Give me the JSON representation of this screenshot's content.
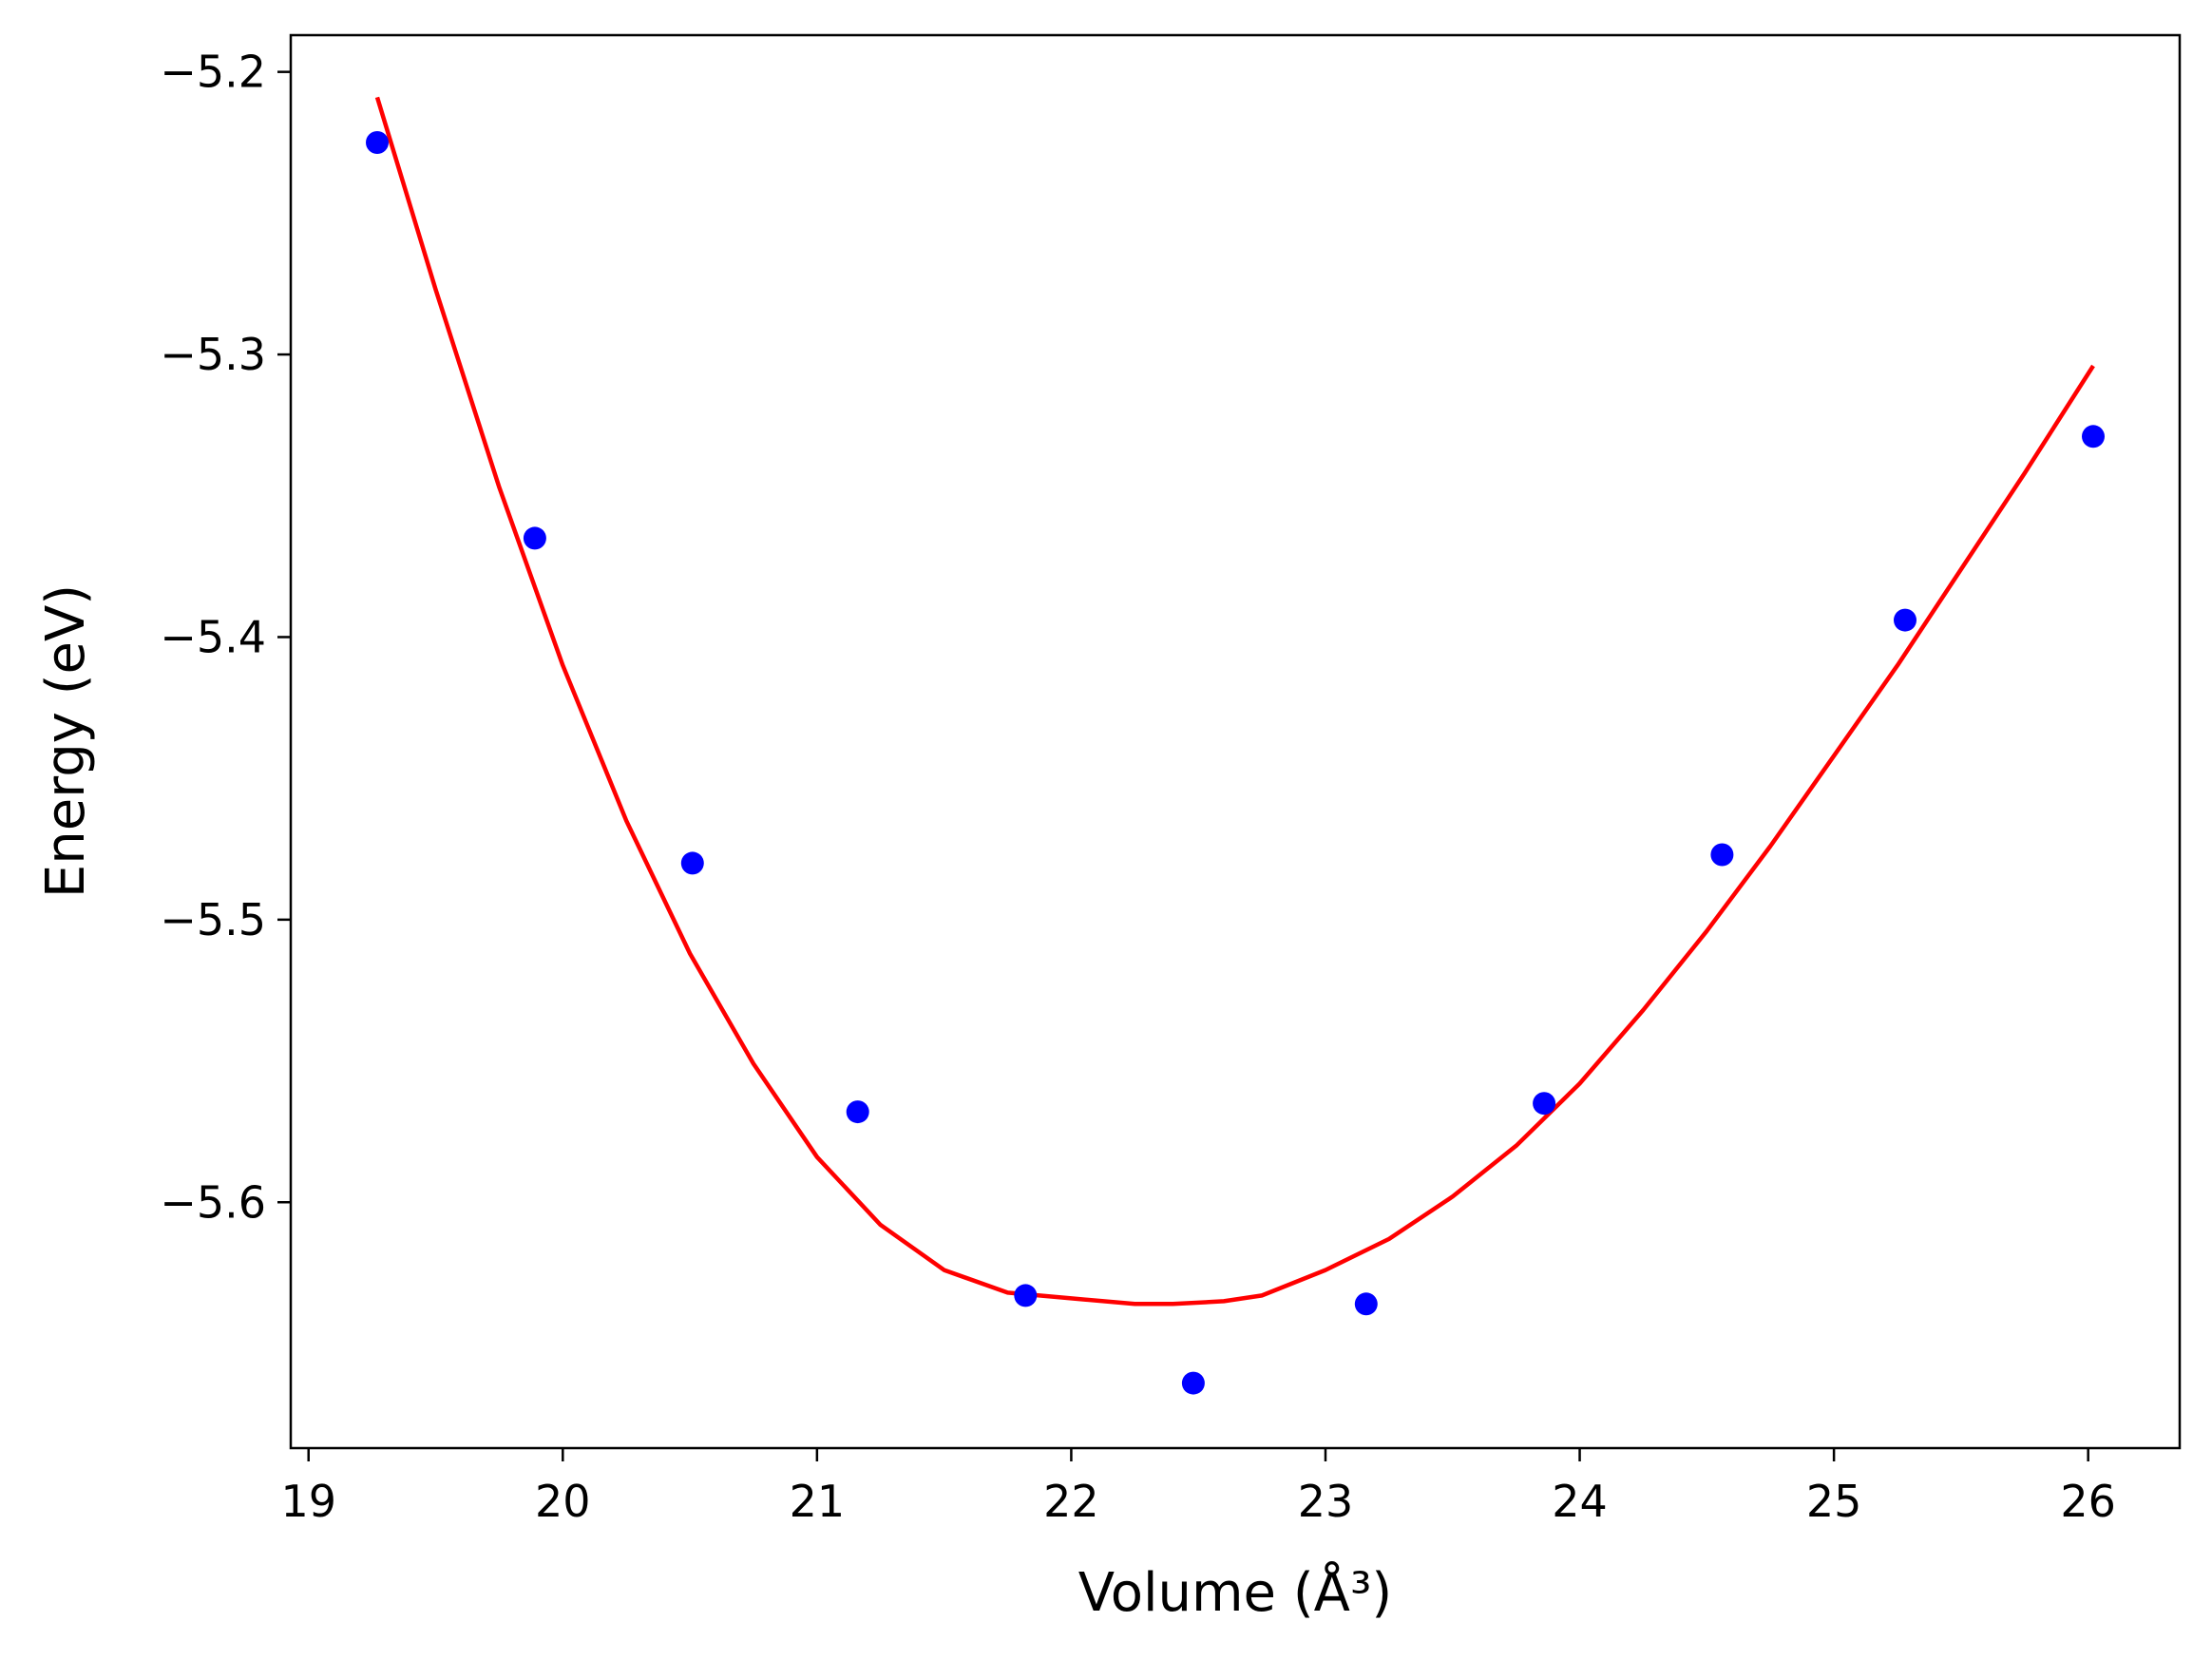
{
  "chart_data": {
    "type": "scatter",
    "xlabel": "Volume (Å³)",
    "ylabel": "Energy (eV)",
    "xlim": [
      18.93,
      26.36
    ],
    "ylim": [
      -5.687,
      -5.187
    ],
    "x_ticks": [
      19,
      20,
      21,
      22,
      23,
      24,
      25,
      26
    ],
    "x_tick_labels": [
      "19",
      "20",
      "21",
      "22",
      "23",
      "24",
      "25",
      "26"
    ],
    "y_ticks": [
      -5.2,
      -5.3,
      -5.4,
      -5.5,
      -5.6
    ],
    "y_tick_labels": [
      "−5.2",
      "−5.3",
      "−5.4",
      "−5.5",
      "−5.6"
    ],
    "grid": false,
    "series": [
      {
        "kind": "points",
        "color": "#0000ff",
        "x": [
          19.27,
          19.89,
          20.51,
          21.16,
          21.82,
          22.48,
          23.16,
          23.86,
          24.56,
          25.28,
          26.02
        ],
        "y": [
          -5.225,
          -5.365,
          -5.48,
          -5.568,
          -5.633,
          -5.664,
          -5.636,
          -5.565,
          -5.477,
          -5.394,
          -5.329
        ]
      },
      {
        "kind": "fit-line",
        "color": "#ff0000",
        "x": [
          19.27,
          19.5,
          19.75,
          20.0,
          20.25,
          20.5,
          20.75,
          21.0,
          21.25,
          21.5,
          21.75,
          22.0,
          22.25,
          22.4,
          22.6,
          22.75,
          23.0,
          23.25,
          23.5,
          23.75,
          24.0,
          24.25,
          24.5,
          24.75,
          25.0,
          25.25,
          25.5,
          25.75,
          26.02
        ],
        "y": [
          -5.209,
          -5.277,
          -5.347,
          -5.41,
          -5.465,
          -5.512,
          -5.551,
          -5.584,
          -5.608,
          -5.624,
          -5.632,
          -5.634,
          -5.636,
          -5.636,
          -5.635,
          -5.633,
          -5.624,
          -5.613,
          -5.598,
          -5.58,
          -5.558,
          -5.532,
          -5.504,
          -5.474,
          -5.442,
          -5.41,
          -5.376,
          -5.342,
          -5.304
        ]
      }
    ]
  }
}
